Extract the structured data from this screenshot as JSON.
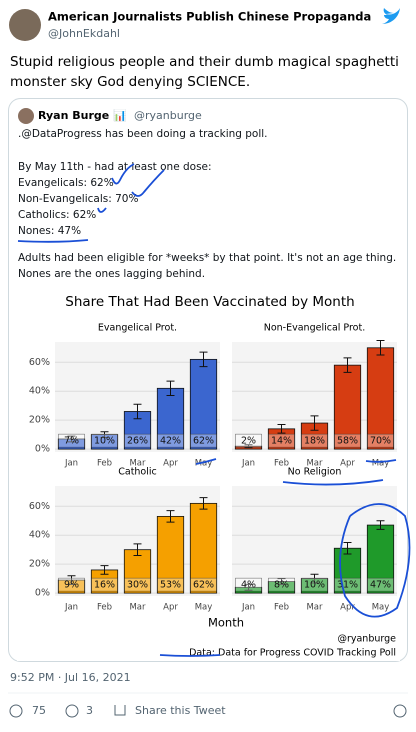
{
  "tweet": {
    "author": "American Journalists Publish Chinese Propaganda",
    "handle": "@JohnEkdahl",
    "text_lines": [
      "Stupid religious people and their dumb magical spaghetti",
      "monster sky God denying SCIENCE."
    ],
    "time": "9:52 PM · Jul 16, 2021",
    "replies": "75",
    "retweets": "3",
    "share": "Share this Tweet"
  },
  "quoted": {
    "author": "Ryan Burge 📊",
    "handle": "@ryanburge",
    "lines": [
      ".@DataProgress has been doing a tracking poll.",
      "By May 11th - had at least one dose:",
      "Evangelicals: 62%",
      "Non-Evangelicals: 70%",
      "Catholics: 62%",
      "Nones: 47%",
      "Adults had been eligible for *weeks* by that point. It's not an age thing.",
      "Nones are the ones lagging behind."
    ]
  },
  "chart_data": {
    "type": "bar",
    "title": "Share That Had Been Vaccinated by Month",
    "x_label": "Month",
    "credit": "@ryanburge",
    "source": "Data: Data for Progress COVID Tracking Poll",
    "ylim": [
      -2,
      74
    ],
    "yticks": [
      {
        "value": 0,
        "label": "0%"
      },
      {
        "value": 20,
        "label": "20%"
      },
      {
        "value": 40,
        "label": "40%"
      },
      {
        "value": 60,
        "label": "60%"
      }
    ],
    "categories": [
      "Jan",
      "Feb",
      "Mar",
      "Apr",
      "May"
    ],
    "panels": [
      {
        "title": "Evangelical Prot.",
        "color": "#3b66cf",
        "values": [
          7,
          10,
          26,
          42,
          62
        ],
        "errors": [
          2,
          2,
          5,
          5,
          5
        ],
        "value_labels": [
          "7%",
          "10%",
          "26%",
          "42%",
          "62%"
        ]
      },
      {
        "title": "Non-Evangelical Prot.",
        "color": "#d63d12",
        "values": [
          2,
          14,
          18,
          58,
          70
        ],
        "errors": [
          1,
          3,
          5,
          5,
          5
        ],
        "value_labels": [
          "2%",
          "14%",
          "18%",
          "58%",
          "70%"
        ]
      },
      {
        "title": "Catholic",
        "color": "#f5a000",
        "values": [
          9,
          16,
          30,
          53,
          62
        ],
        "errors": [
          3,
          3,
          4,
          4,
          4
        ],
        "value_labels": [
          "9%",
          "16%",
          "30%",
          "53%",
          "62%"
        ]
      },
      {
        "title": "No Religion",
        "color": "#1f9a2a",
        "values": [
          4,
          8,
          10,
          31,
          47
        ],
        "errors": [
          2,
          2,
          3,
          4,
          3
        ],
        "value_labels": [
          "4%",
          "8%",
          "10%",
          "31%",
          "47%"
        ]
      }
    ]
  }
}
